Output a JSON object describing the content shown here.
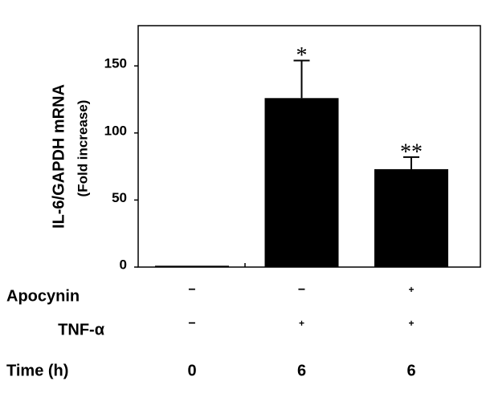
{
  "chart_data": {
    "type": "bar",
    "y_label": "IL-6/GAPDH mRNA",
    "y_sublabel": "(Fold increase)",
    "values": [
      1,
      126,
      73
    ],
    "errors": [
      0,
      28,
      9
    ],
    "color": "#000000",
    "annotations": [
      null,
      "*",
      "**"
    ],
    "ylim": [
      0,
      180
    ],
    "yticks": [
      0,
      50,
      100,
      150
    ],
    "conditions": [
      {
        "label": "Apocynin",
        "values": [
          "−",
          "−",
          "+"
        ]
      },
      {
        "label": "TNF-α",
        "values": [
          "−",
          "+",
          "+"
        ]
      },
      {
        "label": "Time (h)",
        "values": [
          "0",
          "6",
          "6"
        ]
      }
    ]
  }
}
